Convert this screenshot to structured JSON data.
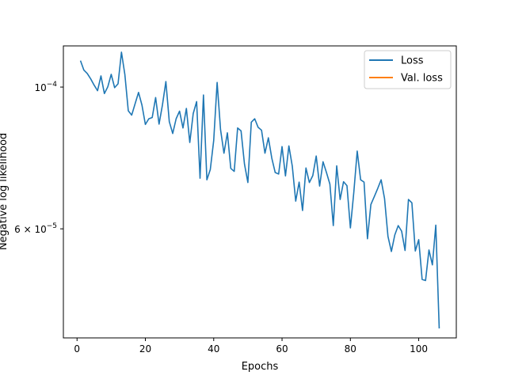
{
  "chart_data": {
    "type": "line",
    "title": "",
    "xlabel": "Epochs",
    "ylabel": "Negative log likelihood",
    "yscale": "log",
    "xlim": [
      -4,
      111
    ],
    "ylim": [
      4.05e-05,
      0.000116
    ],
    "grid": false,
    "legend_position": "top-right",
    "x_ticks": [
      {
        "value": 0,
        "label": "0"
      },
      {
        "value": 20,
        "label": "20"
      },
      {
        "value": 40,
        "label": "40"
      },
      {
        "value": 60,
        "label": "60"
      },
      {
        "value": 80,
        "label": "80"
      },
      {
        "value": 100,
        "label": "100"
      }
    ],
    "y_ticks": [
      {
        "value": 0.0001,
        "label_base": "10",
        "label_exp": "−4"
      },
      {
        "value": 6e-05,
        "label_base": "6 × 10",
        "label_exp": "−5"
      }
    ],
    "series": [
      {
        "name": "Loss",
        "color": "#1f77b4",
        "x": [
          1,
          2,
          3,
          4,
          5,
          6,
          7,
          8,
          9,
          10,
          11,
          12,
          13,
          14,
          15,
          16,
          17,
          18,
          19,
          20,
          21,
          22,
          23,
          24,
          25,
          26,
          27,
          28,
          29,
          30,
          31,
          32,
          33,
          34,
          35,
          36,
          37,
          38,
          39,
          40,
          41,
          42,
          43,
          44,
          45,
          46,
          47,
          48,
          49,
          50,
          51,
          52,
          53,
          54,
          55,
          56,
          57,
          58,
          59,
          60,
          61,
          62,
          63,
          64,
          65,
          66,
          67,
          68,
          69,
          70,
          71,
          72,
          73,
          74,
          75,
          76,
          77,
          78,
          79,
          80,
          81,
          82,
          83,
          84,
          85,
          86,
          87,
          88,
          89,
          90,
          91,
          92,
          93,
          94,
          95,
          96,
          97,
          98,
          99,
          100,
          101,
          102,
          103,
          104,
          105,
          106
        ],
        "values": [
          0.00011,
          0.0001063,
          0.000105,
          0.000103,
          0.0001007,
          9.87e-05,
          0.0001041,
          9.77e-05,
          0.0001001,
          0.0001047,
          9.98e-05,
          0.0001012,
          0.0001134,
          0.0001046,
          9.18e-05,
          9.04e-05,
          9.42e-05,
          9.81e-05,
          9.37e-05,
          8.74e-05,
          8.92e-05,
          8.96e-05,
          9.63e-05,
          8.75e-05,
          9.38e-05,
          0.000102,
          8.83e-05,
          8.46e-05,
          8.92e-05,
          9.17e-05,
          8.63e-05,
          9.26e-05,
          8.19e-05,
          9.09e-05,
          9.49e-05,
          7.2e-05,
          9.72e-05,
          7.16e-05,
          7.43e-05,
          8.25e-05,
          0.0001017,
          8.58e-05,
          7.88e-05,
          8.48e-05,
          7.46e-05,
          7.38e-05,
          8.63e-05,
          8.54e-05,
          7.58e-05,
          7.09e-05,
          8.81e-05,
          8.92e-05,
          8.65e-05,
          8.56e-05,
          7.88e-05,
          8.33e-05,
          7.74e-05,
          7.35e-05,
          7.31e-05,
          8.07e-05,
          7.26e-05,
          8.09e-05,
          7.52e-05,
          6.63e-05,
          7.1e-05,
          6.41e-05,
          7.47e-05,
          7.09e-05,
          7.27e-05,
          7.8e-05,
          7e-05,
          7.64e-05,
          7.35e-05,
          7.05e-05,
          6.07e-05,
          7.53e-05,
          6.67e-05,
          7.11e-05,
          7.01e-05,
          6.02e-05,
          6.84e-05,
          7.94e-05,
          7.16e-05,
          7.1e-05,
          5.79e-05,
          6.55e-05,
          6.74e-05,
          6.94e-05,
          7.16e-05,
          6.69e-05,
          5.84e-05,
          5.53e-05,
          5.87e-05,
          6.07e-05,
          5.95e-05,
          5.55e-05,
          6.67e-05,
          6.59e-05,
          5.54e-05,
          5.77e-05,
          5e-05,
          4.98e-05,
          5.56e-05,
          5.27e-05,
          6.08e-05,
          4.19e-05
        ]
      },
      {
        "name": "Val. loss",
        "color": "#ff7f0e",
        "x": [],
        "values": []
      }
    ]
  }
}
